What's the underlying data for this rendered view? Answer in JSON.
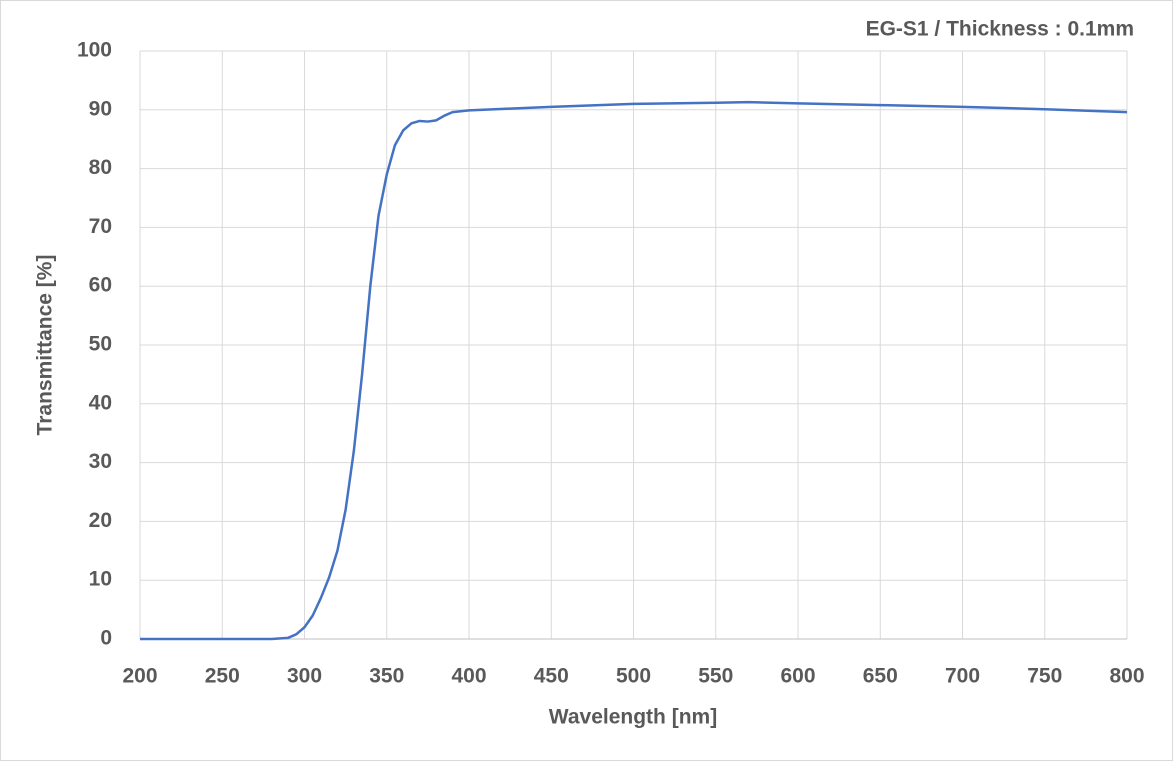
{
  "chart_data": {
    "type": "line",
    "title": "EG-S1 / Thickness : 0.1mm",
    "x_label": "Wavelength [nm]",
    "y_label": "Transmittance [%]",
    "x": [
      200,
      250,
      280,
      290,
      295,
      300,
      305,
      310,
      315,
      320,
      325,
      330,
      335,
      340,
      345,
      350,
      355,
      360,
      365,
      370,
      375,
      380,
      385,
      390,
      400,
      425,
      450,
      500,
      550,
      570,
      600,
      650,
      700,
      750,
      800
    ],
    "series": [
      {
        "name": "EG-S1",
        "color": "#4472c4",
        "values": [
          0,
          0,
          0,
          0.2,
          0.8,
          2,
          4,
          7,
          10.5,
          15,
          22,
          32,
          45,
          60,
          72,
          79,
          84,
          86.5,
          87.7,
          88.1,
          88,
          88.2,
          89,
          89.6,
          89.9,
          90.2,
          90.5,
          91,
          91.2,
          91.3,
          91.1,
          90.8,
          90.5,
          90.1,
          89.6
        ]
      }
    ],
    "xlim": [
      200,
      800
    ],
    "xticks": [
      200,
      250,
      300,
      350,
      400,
      450,
      500,
      550,
      600,
      650,
      700,
      750,
      800
    ],
    "ylim": [
      0,
      100
    ],
    "yticks": [
      0,
      10,
      20,
      30,
      40,
      50,
      60,
      70,
      80,
      90,
      100
    ],
    "grid": true
  }
}
